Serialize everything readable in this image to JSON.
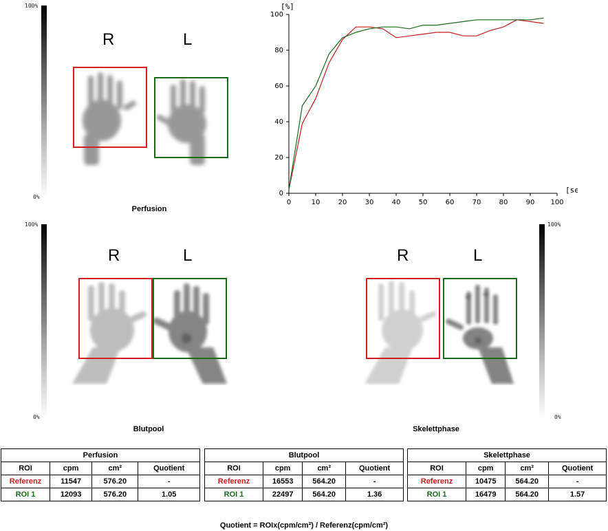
{
  "scales": {
    "top_label": "100%",
    "bottom_label": "0%"
  },
  "panels": {
    "perfusion": {
      "caption": "Perfusion",
      "right_label": "R",
      "left_label": "L"
    },
    "blutpool": {
      "caption": "Blutpool",
      "right_label": "R",
      "left_label": "L"
    },
    "skelettphase": {
      "caption": "Skelettphase",
      "right_label": "R",
      "left_label": "L"
    }
  },
  "colors": {
    "referenz": "#d12020",
    "roi1": "#1a6b1a"
  },
  "chart_data": {
    "type": "line",
    "ylabel": "[%]",
    "xlabel": "[sec]",
    "xlim": [
      0,
      100
    ],
    "ylim": [
      0,
      100
    ],
    "xticks": [
      0,
      10,
      20,
      30,
      40,
      50,
      60,
      70,
      80,
      90,
      100
    ],
    "yticks": [
      0,
      20,
      40,
      60,
      80,
      100
    ],
    "x": [
      0,
      5,
      10,
      15,
      20,
      25,
      30,
      35,
      40,
      45,
      50,
      55,
      60,
      65,
      70,
      75,
      80,
      85,
      90,
      95
    ],
    "series": [
      {
        "color": "#c81e1e",
        "values": [
          2,
          39,
          53,
          73,
          86,
          93,
          93,
          92,
          87,
          88,
          89,
          90,
          90,
          88,
          88,
          91,
          93,
          97,
          96,
          95
        ]
      },
      {
        "color": "#1a6b1a",
        "values": [
          2,
          49,
          60,
          78,
          87,
          90,
          92,
          93,
          93,
          92,
          94,
          94,
          95,
          96,
          97,
          97,
          97,
          97,
          97,
          98
        ]
      }
    ]
  },
  "tables": [
    {
      "title": "Perfusion",
      "headers": [
        "ROI",
        "cpm",
        "cm²",
        "Quotient"
      ],
      "rows": [
        [
          "Referenz",
          "11547",
          "576.20",
          "-"
        ],
        [
          "ROI 1",
          "12093",
          "576.20",
          "1.05"
        ]
      ]
    },
    {
      "title": "Blutpool",
      "headers": [
        "ROI",
        "cpm",
        "cm²",
        "Quotient"
      ],
      "rows": [
        [
          "Referenz",
          "16553",
          "564.20",
          "-"
        ],
        [
          "ROI 1",
          "22497",
          "564.20",
          "1.36"
        ]
      ]
    },
    {
      "title": "Skelettphase",
      "headers": [
        "ROI",
        "cpm",
        "cm²",
        "Quotient"
      ],
      "rows": [
        [
          "Referenz",
          "10475",
          "564.20",
          "-"
        ],
        [
          "ROI 1",
          "16479",
          "564.20",
          "1.57"
        ]
      ]
    }
  ],
  "formula": "Quotient = ROIx(cpm/cm²) / Referenz(cpm/cm²)"
}
